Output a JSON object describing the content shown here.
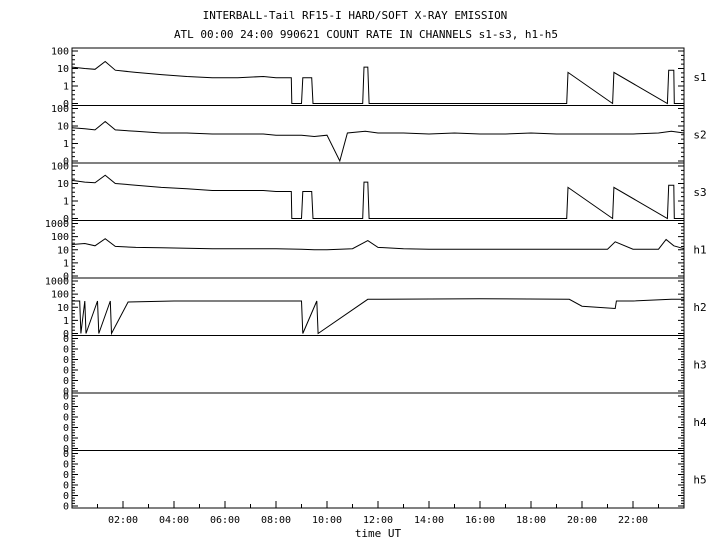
{
  "chart_data": {
    "type": "line",
    "title": "INTERBALL-Tail RF15-I HARD/SOFT X-RAY EMISSION",
    "subtitle": "ATL 00:00 24:00 990621  COUNT RATE IN CHANNELS s1-s3, h1-h5",
    "xlabel": "time UT",
    "xlim": [
      0,
      24
    ],
    "x_tick_labels": [
      "02:00",
      "04:00",
      "06:00",
      "08:00",
      "10:00",
      "12:00",
      "14:00",
      "16:00",
      "18:00",
      "20:00",
      "22:00"
    ],
    "y_scale": "log",
    "grid": false,
    "panels": [
      {
        "name": "s1",
        "ylim": [
          0.1,
          100
        ],
        "y_tick_labels": [
          "100",
          "10",
          "1",
          "0"
        ],
        "x": [
          0,
          0.5,
          0.9,
          1.3,
          1.7,
          2.5,
          3.5,
          4.5,
          5.5,
          6.5,
          7.5,
          8.0,
          8.05,
          8.6,
          8.62,
          9.0,
          9.05,
          9.4,
          9.45,
          9.6,
          9.62,
          11.4,
          11.45,
          11.6,
          11.65,
          19.4,
          19.45,
          21.2,
          21.25,
          23.35,
          23.4,
          23.6,
          23.62,
          24
        ],
        "values": [
          12,
          10,
          9,
          25,
          8,
          6,
          4.5,
          3.5,
          3,
          3,
          3.5,
          3,
          3,
          3,
          0.1,
          0.1,
          3,
          3,
          0.1,
          0.1,
          0.1,
          0.1,
          12,
          12,
          0.1,
          0.1,
          6,
          0.1,
          6,
          0.1,
          8,
          8,
          0.1,
          0.1
        ]
      },
      {
        "name": "s2",
        "ylim": [
          0.1,
          100
        ],
        "y_tick_labels": [
          "100",
          "10",
          "1",
          "0"
        ],
        "x": [
          0,
          0.5,
          0.9,
          1.3,
          1.7,
          2.5,
          3.5,
          4.5,
          5.5,
          6.5,
          7.5,
          8.0,
          8.5,
          9.0,
          9.5,
          10.0,
          10.5,
          10.8,
          11.5,
          12.0,
          13.0,
          14.0,
          15.0,
          16.0,
          17.0,
          18.0,
          19.0,
          20.0,
          21.0,
          22.0,
          23.0,
          23.5,
          24
        ],
        "values": [
          8,
          7,
          6,
          18,
          6,
          5,
          4,
          4,
          3.5,
          3.5,
          3.5,
          3,
          3,
          3,
          2.5,
          3,
          0.1,
          4,
          5,
          4,
          4,
          3.5,
          4,
          3.5,
          3.5,
          4,
          3.5,
          3.5,
          3.5,
          3.5,
          4,
          5,
          4
        ]
      },
      {
        "name": "s3",
        "ylim": [
          0.1,
          100
        ],
        "y_tick_labels": [
          "100",
          "10",
          "1",
          "0"
        ],
        "x": [
          0,
          0.5,
          0.9,
          1.3,
          1.7,
          2.5,
          3.5,
          4.5,
          5.5,
          6.5,
          7.5,
          8.0,
          8.05,
          8.6,
          8.62,
          9.0,
          9.05,
          9.4,
          9.45,
          9.6,
          9.62,
          11.4,
          11.45,
          11.6,
          11.65,
          19.4,
          19.45,
          21.2,
          21.25,
          23.35,
          23.4,
          23.6,
          23.62,
          24
        ],
        "values": [
          15,
          12,
          11,
          30,
          10,
          8,
          6,
          5,
          4,
          4,
          4,
          3.5,
          3.5,
          3.5,
          0.1,
          0.1,
          3.5,
          3.5,
          0.1,
          0.1,
          0.1,
          0.1,
          12,
          12,
          0.1,
          0.1,
          6,
          0.1,
          6,
          0.1,
          8,
          8,
          0.1,
          0.1
        ]
      },
      {
        "name": "h1",
        "ylim": [
          0.1,
          1000
        ],
        "y_tick_labels": [
          "1000",
          "100",
          "10",
          "1",
          "0"
        ],
        "x": [
          0,
          0.5,
          0.9,
          1.3,
          1.7,
          2.5,
          3.5,
          4.5,
          5.5,
          6.5,
          7.5,
          8.0,
          9.0,
          9.5,
          10.0,
          11.0,
          11.6,
          12.0,
          13.0,
          14.0,
          15.0,
          16.0,
          17.0,
          18.0,
          19.0,
          20.0,
          21.0,
          21.3,
          22.0,
          23.0,
          23.3,
          23.6,
          24
        ],
        "values": [
          25,
          30,
          20,
          70,
          18,
          15,
          14,
          13,
          12,
          12,
          12,
          12,
          11,
          10,
          10,
          12,
          50,
          15,
          12,
          11,
          11,
          11,
          11,
          11,
          11,
          11,
          11,
          40,
          11,
          11,
          60,
          20,
          12
        ]
      },
      {
        "name": "h2",
        "ylim": [
          0.1,
          1000
        ],
        "y_tick_labels": [
          "1000",
          "100",
          "10",
          "1",
          "0"
        ],
        "x": [
          0,
          0.3,
          0.35,
          0.5,
          0.55,
          1.0,
          1.05,
          1.5,
          1.55,
          2.2,
          4.0,
          9.0,
          9.05,
          9.6,
          9.65,
          11.6,
          11.65,
          16.0,
          19.5,
          20.0,
          21.3,
          21.35,
          22.0,
          23.5,
          24
        ],
        "values": [
          30,
          30,
          0.1,
          30,
          0.1,
          30,
          0.1,
          30,
          0.1,
          25,
          30,
          30,
          0.1,
          30,
          0.1,
          40,
          40,
          45,
          40,
          12,
          8,
          30,
          30,
          40,
          40
        ]
      },
      {
        "name": "h3",
        "ylim": [
          0,
          1
        ],
        "y_tick_labels": [
          "0",
          "0",
          "0",
          "0",
          "0",
          "0"
        ],
        "x": [],
        "values": []
      },
      {
        "name": "h4",
        "ylim": [
          0,
          1
        ],
        "y_tick_labels": [
          "0",
          "0",
          "0",
          "0",
          "0",
          "0"
        ],
        "x": [],
        "values": []
      },
      {
        "name": "h5",
        "ylim": [
          0,
          1
        ],
        "y_tick_labels": [
          "0",
          "0",
          "0",
          "0",
          "0",
          "0"
        ],
        "x": [],
        "values": []
      }
    ]
  }
}
